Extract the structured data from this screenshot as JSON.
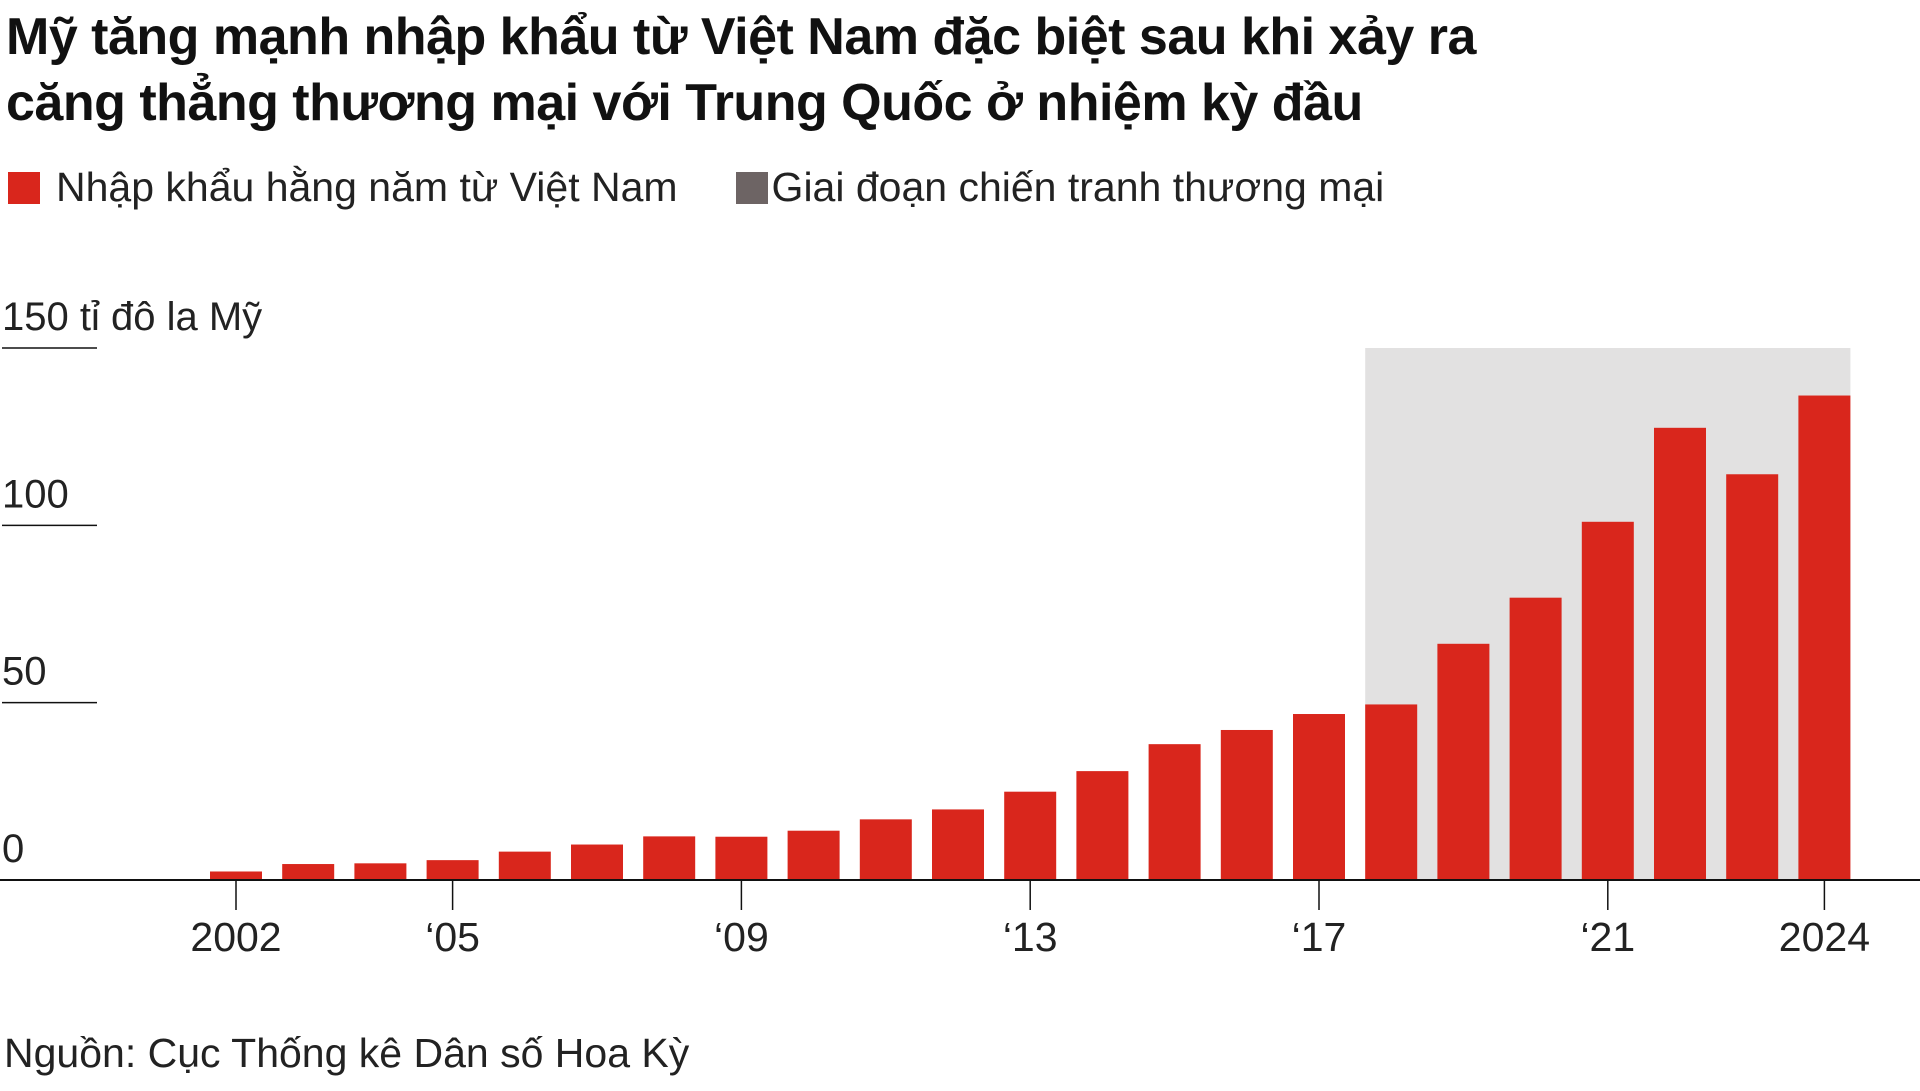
{
  "title_lines": [
    "Mỹ tăng mạnh nhập khẩu từ Việt Nam đặc biệt sau khi xảy ra",
    "căng thẳng thương mại với Trung Quốc ở nhiệm kỳ đầu"
  ],
  "legend": {
    "series_label": "Nhập khẩu hằng năm từ Việt Nam",
    "shade_label": "Giai đoạn chiến tranh thương mại"
  },
  "source": "Nguồn: Cục Thống kê Dân số Hoa Kỳ",
  "colors": {
    "bar": "#d9261c",
    "shade": "#e2e1e1",
    "shade_legend": "#6d6464",
    "axis": "#111111"
  },
  "chart_data": {
    "type": "bar",
    "categories": [
      "2002",
      "2003",
      "2004",
      "2005",
      "2006",
      "2007",
      "2008",
      "2009",
      "2010",
      "2011",
      "2012",
      "2013",
      "2014",
      "2015",
      "2016",
      "2017",
      "2018",
      "2019",
      "2020",
      "2021",
      "2022",
      "2023",
      "2024"
    ],
    "values": [
      2.4,
      4.5,
      4.7,
      5.6,
      8.0,
      10.0,
      12.3,
      12.2,
      13.9,
      17.1,
      19.9,
      24.9,
      30.7,
      38.3,
      42.3,
      46.8,
      49.5,
      66.6,
      79.6,
      101.0,
      127.5,
      114.4,
      136.6
    ],
    "highlight_range": [
      "2018",
      "2024"
    ],
    "ylabel": "150 tỉ đô la Mỹ",
    "y_ticks": [
      {
        "value": 0,
        "label": "0"
      },
      {
        "value": 50,
        "label": "50"
      },
      {
        "value": 100,
        "label": "100"
      },
      {
        "value": 150,
        "label": "150 tỉ đô la Mỹ"
      }
    ],
    "x_ticks": [
      {
        "category": "2002",
        "label": "2002"
      },
      {
        "category": "2005",
        "label": "‘05"
      },
      {
        "category": "2009",
        "label": "‘09"
      },
      {
        "category": "2013",
        "label": "‘13"
      },
      {
        "category": "2017",
        "label": "‘17"
      },
      {
        "category": "2021",
        "label": "‘21"
      },
      {
        "category": "2024",
        "label": "2024"
      }
    ],
    "ylim": [
      0,
      150
    ],
    "grid": false,
    "legend_position": "top-left"
  }
}
